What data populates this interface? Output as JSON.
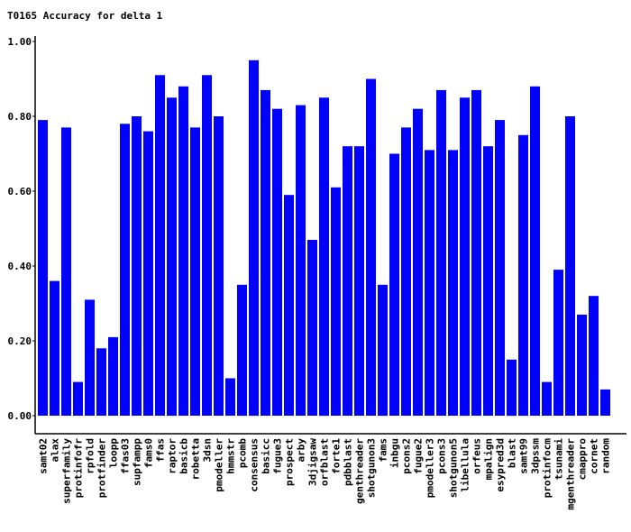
{
  "chart_data": {
    "type": "bar",
    "title": "T0165 Accuracy for delta 1",
    "xlabel": "",
    "ylabel": "",
    "ylim": [
      0,
      1.0
    ],
    "yticks": [
      "0.00",
      "0.20",
      "0.40",
      "0.60",
      "0.80",
      "1.00"
    ],
    "grid": false,
    "legend": "none",
    "bar_color": "#0000ff",
    "categories": [
      "samt02",
      "alax",
      "superfamily",
      "protinfofr",
      "rpfold",
      "protfinder",
      "loopp",
      "ffas03",
      "supfampp",
      "fams0",
      "ffas",
      "raptor",
      "basicb",
      "robetta",
      "3dsn",
      "pmodeller",
      "hmmstr",
      "pcomb",
      "consensus",
      "basicc",
      "fugue3",
      "prospect",
      "arby",
      "3djigsaw",
      "orfblast",
      "forte1",
      "pdbblast",
      "genthreader",
      "shotgunon3",
      "fams",
      "inbgu",
      "pcons2",
      "fugue2",
      "pmodeller3",
      "pcons3",
      "shotgunon5",
      "libellula",
      "orfeus",
      "mpalign",
      "esypred3d",
      "blast",
      "samt99",
      "3dpssm",
      "protinfocm",
      "tsunami",
      "mgenthreader",
      "cmappro",
      "cornet",
      "random"
    ],
    "values": [
      0.79,
      0.36,
      0.77,
      0.09,
      0.31,
      0.18,
      0.21,
      0.78,
      0.8,
      0.76,
      0.91,
      0.85,
      0.88,
      0.77,
      0.91,
      0.8,
      0.1,
      0.35,
      0.95,
      0.87,
      0.82,
      0.59,
      0.83,
      0.47,
      0.85,
      0.61,
      0.72,
      0.72,
      0.9,
      0.35,
      0.7,
      0.77,
      0.82,
      0.71,
      0.87,
      0.71,
      0.85,
      0.87,
      0.72,
      0.79,
      0.15,
      0.75,
      0.88,
      0.09,
      0.39,
      0.8,
      0.27,
      0.32,
      0.07
    ]
  }
}
